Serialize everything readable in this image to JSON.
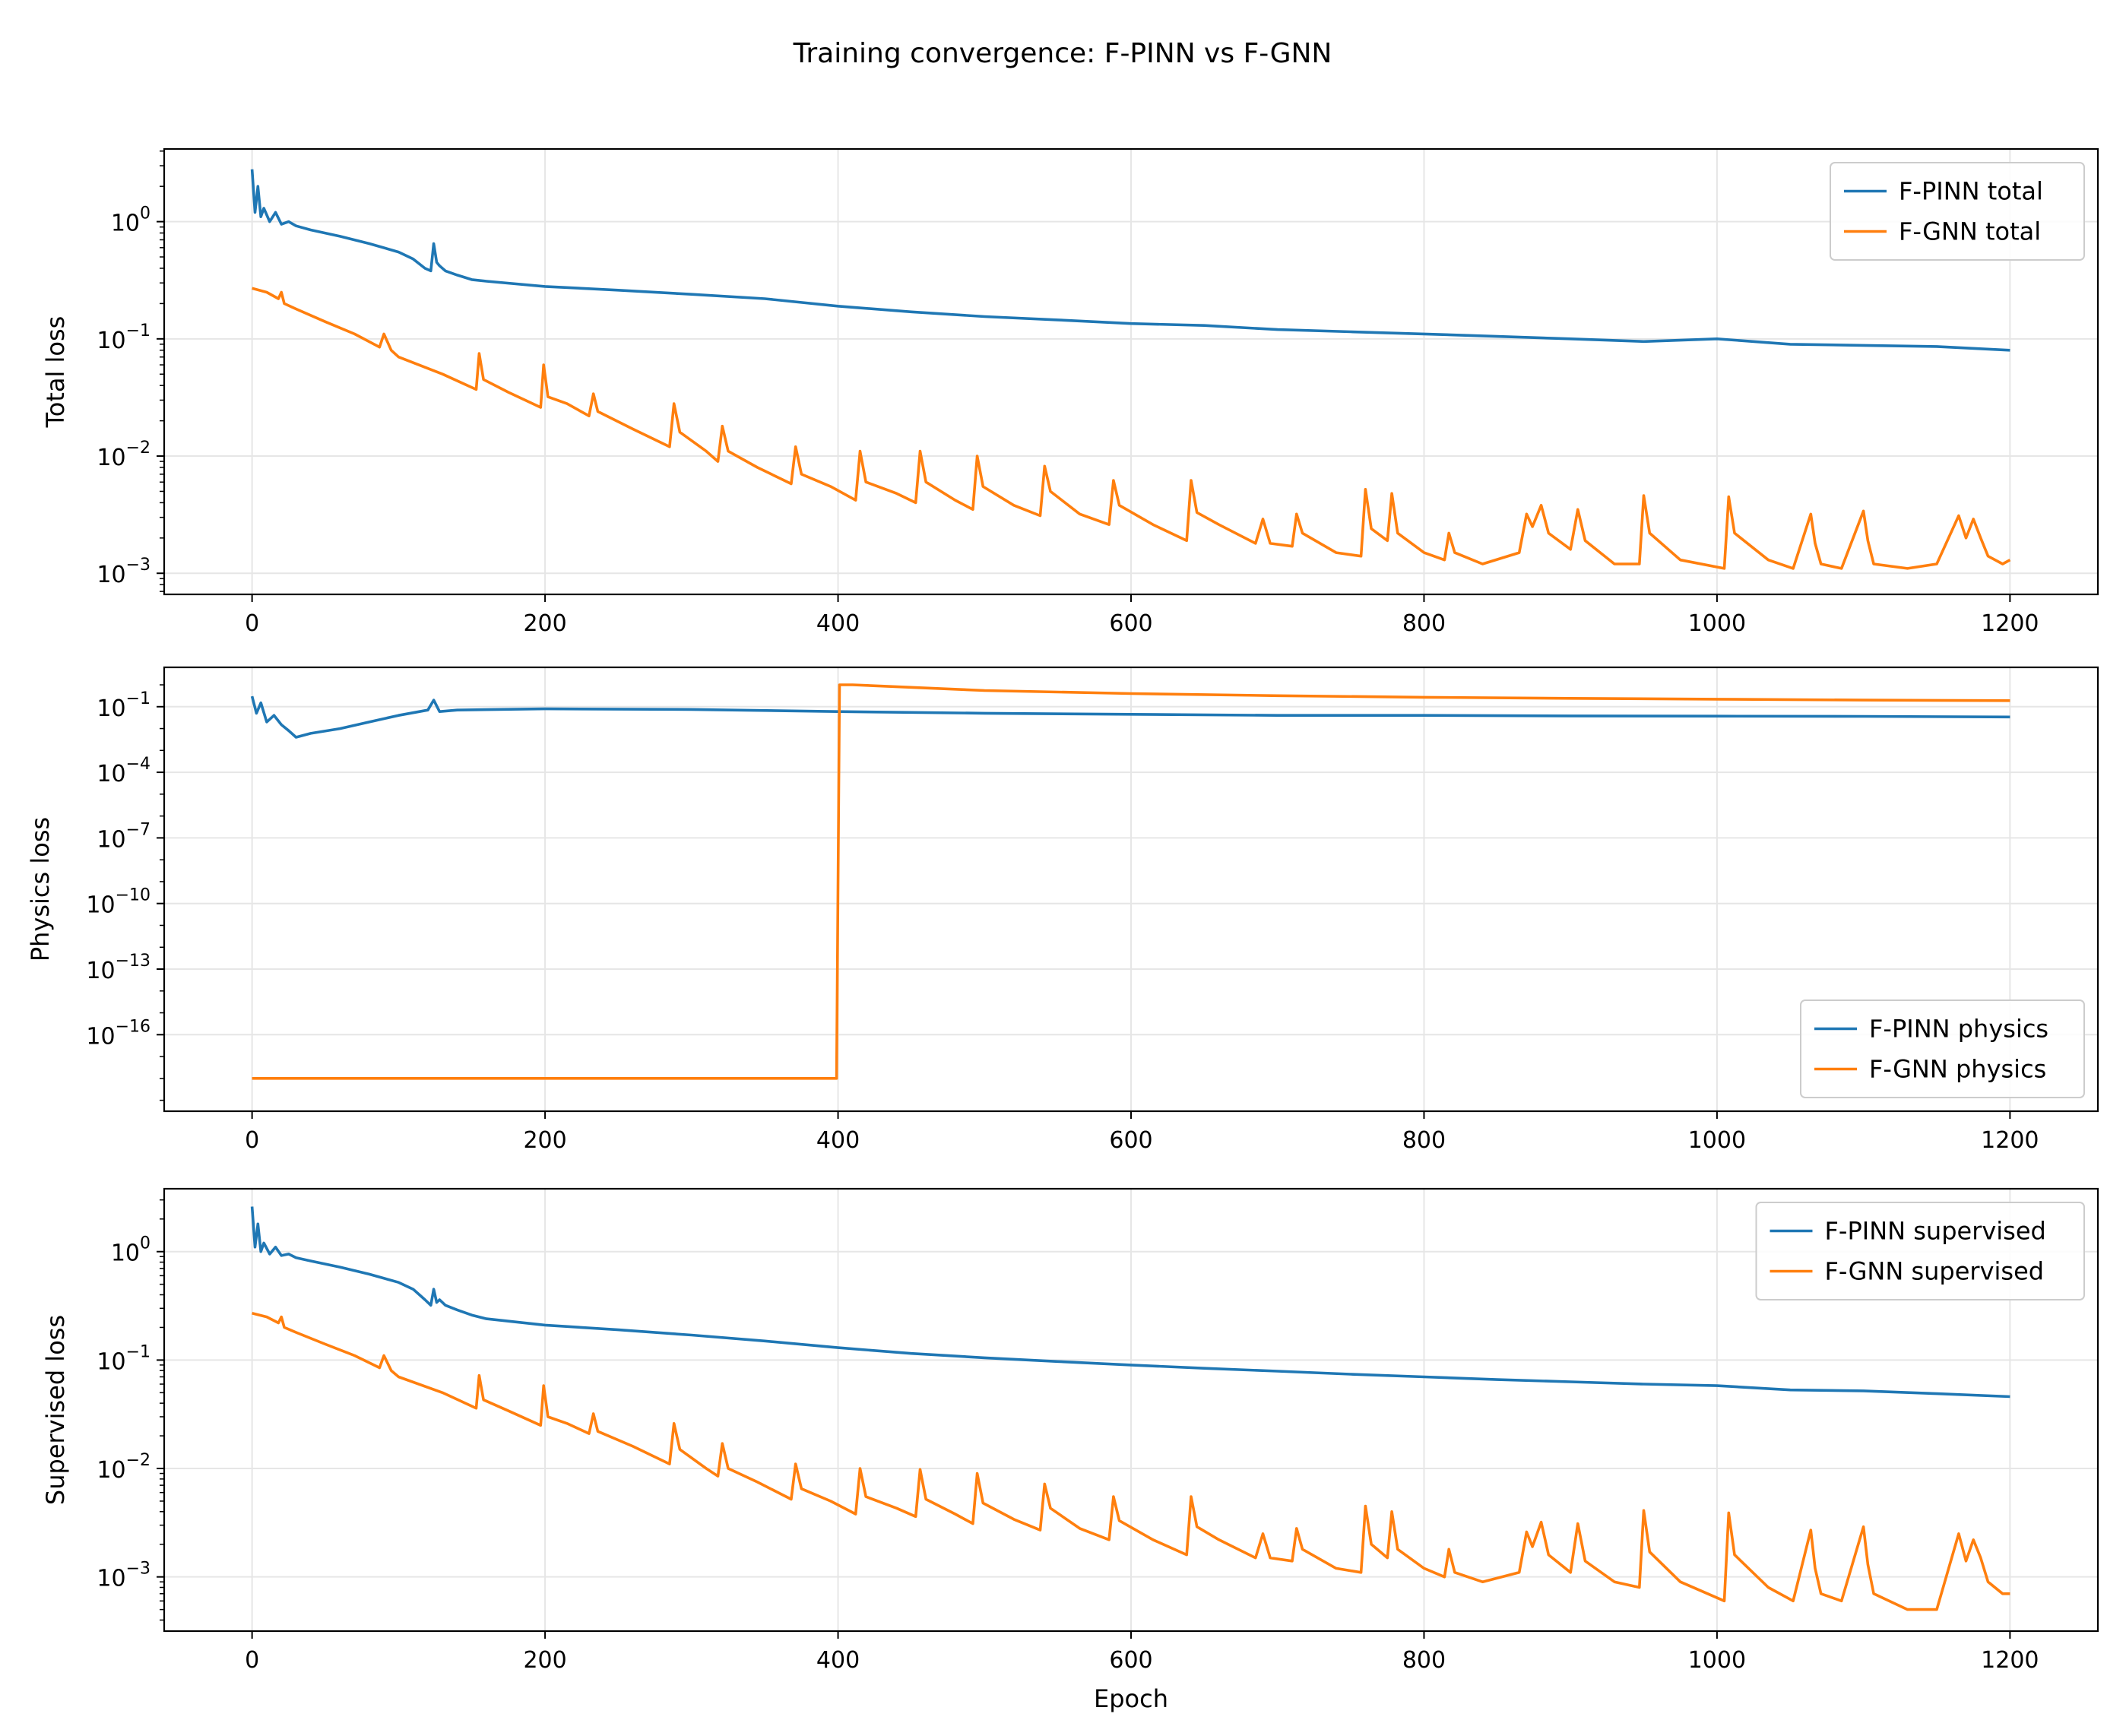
{
  "figure": {
    "title": "Training convergence: F-PINN vs F-GNN"
  },
  "colors": {
    "pinn": "#1f77b4",
    "gnn": "#ff7f0e",
    "grid": "#e6e6e6",
    "axis": "#000000"
  },
  "chart_data": [
    {
      "type": "line",
      "title": "",
      "xlabel": "",
      "ylabel": "Total loss",
      "yscale": "log",
      "xlim": [
        -60,
        1260
      ],
      "xticks": [
        0,
        200,
        400,
        600,
        800,
        1000,
        1200
      ],
      "ylim_log10": [
        -3.18,
        0.62
      ],
      "ytick_exponents": [
        0,
        -1,
        -2,
        -3
      ],
      "legend_loc": "upper right",
      "series": [
        {
          "name": "F-PINN total",
          "color": "#1f77b4",
          "x": [
            0,
            2,
            4,
            6,
            8,
            12,
            16,
            20,
            25,
            30,
            40,
            60,
            80,
            100,
            110,
            118,
            122,
            124,
            126,
            128,
            132,
            140,
            150,
            160,
            200,
            250,
            300,
            350,
            400,
            450,
            500,
            550,
            600,
            650,
            700,
            750,
            800,
            850,
            900,
            950,
            1000,
            1050,
            1100,
            1150,
            1200
          ],
          "y": [
            2.8,
            1.2,
            2.0,
            1.1,
            1.3,
            1.0,
            1.2,
            0.95,
            1.0,
            0.92,
            0.85,
            0.75,
            0.65,
            0.55,
            0.48,
            0.4,
            0.38,
            0.65,
            0.45,
            0.42,
            0.38,
            0.35,
            0.32,
            0.31,
            0.28,
            0.26,
            0.24,
            0.22,
            0.19,
            0.17,
            0.155,
            0.145,
            0.135,
            0.13,
            0.12,
            0.115,
            0.11,
            0.105,
            0.1,
            0.095,
            0.1,
            0.09,
            0.088,
            0.086,
            0.08
          ]
        },
        {
          "name": "F-GNN total",
          "color": "#ff7f0e",
          "x": [
            0,
            10,
            18,
            20,
            22,
            30,
            50,
            70,
            87,
            90,
            95,
            100,
            130,
            153,
            155,
            158,
            175,
            197,
            199,
            202,
            215,
            230,
            233,
            236,
            260,
            285,
            288,
            292,
            310,
            318,
            321,
            325,
            345,
            368,
            371,
            375,
            395,
            412,
            415,
            419,
            440,
            453,
            456,
            460,
            480,
            492,
            495,
            499,
            520,
            538,
            541,
            545,
            565,
            585,
            588,
            592,
            615,
            638,
            641,
            645,
            660,
            685,
            690,
            695,
            710,
            713,
            717,
            740,
            757,
            760,
            764,
            775,
            778,
            782,
            800,
            814,
            817,
            821,
            840,
            865,
            870,
            874,
            880,
            885,
            900,
            905,
            910,
            930,
            947,
            950,
            954,
            975,
            1005,
            1008,
            1012,
            1035,
            1052,
            1064,
            1067,
            1071,
            1085,
            1100,
            1103,
            1107,
            1130,
            1150,
            1165,
            1170,
            1175,
            1180,
            1185,
            1195,
            1200
          ],
          "y": [
            0.27,
            0.25,
            0.22,
            0.25,
            0.2,
            0.18,
            0.14,
            0.11,
            0.085,
            0.11,
            0.08,
            0.07,
            0.05,
            0.037,
            0.075,
            0.045,
            0.035,
            0.026,
            0.06,
            0.032,
            0.028,
            0.022,
            0.034,
            0.024,
            0.017,
            0.012,
            0.028,
            0.016,
            0.011,
            0.009,
            0.018,
            0.011,
            0.008,
            0.0058,
            0.012,
            0.007,
            0.0055,
            0.0042,
            0.011,
            0.006,
            0.0048,
            0.004,
            0.011,
            0.006,
            0.0042,
            0.0035,
            0.01,
            0.0055,
            0.0038,
            0.0031,
            0.0082,
            0.005,
            0.0032,
            0.0026,
            0.0062,
            0.0038,
            0.0026,
            0.0019,
            0.0062,
            0.0033,
            0.0026,
            0.0018,
            0.0029,
            0.0018,
            0.0017,
            0.0032,
            0.0022,
            0.0015,
            0.0014,
            0.0052,
            0.0024,
            0.0019,
            0.0048,
            0.0022,
            0.0015,
            0.0013,
            0.0022,
            0.0015,
            0.0012,
            0.0015,
            0.0032,
            0.0025,
            0.0038,
            0.0022,
            0.0016,
            0.0035,
            0.0019,
            0.0012,
            0.0012,
            0.0046,
            0.0022,
            0.0013,
            0.0011,
            0.0045,
            0.0022,
            0.0013,
            0.0011,
            0.0032,
            0.0018,
            0.0012,
            0.0011,
            0.0034,
            0.0019,
            0.0012,
            0.0011,
            0.0012,
            0.0031,
            0.002,
            0.0029,
            0.002,
            0.0014,
            0.0012,
            0.0013
          ]
        }
      ]
    },
    {
      "type": "line",
      "title": "",
      "xlabel": "",
      "ylabel": "Physics loss",
      "yscale": "log",
      "xlim": [
        -60,
        1260
      ],
      "xticks": [
        0,
        200,
        400,
        600,
        800,
        1000,
        1200
      ],
      "ylim_log10": [
        -19.5,
        0.8
      ],
      "ytick_exponents": [
        -1,
        -4,
        -7,
        -10,
        -13,
        -16
      ],
      "legend_loc": "lower right",
      "series": [
        {
          "name": "F-PINN physics",
          "color": "#1f77b4",
          "x": [
            0,
            3,
            6,
            10,
            15,
            20,
            25,
            30,
            40,
            60,
            80,
            100,
            120,
            124,
            128,
            140,
            200,
            300,
            400,
            500,
            600,
            700,
            800,
            900,
            1000,
            1100,
            1200
          ],
          "y": [
            0.3,
            0.05,
            0.15,
            0.02,
            0.04,
            0.015,
            0.008,
            0.004,
            0.006,
            0.01,
            0.02,
            0.04,
            0.07,
            0.2,
            0.06,
            0.07,
            0.08,
            0.075,
            0.06,
            0.05,
            0.045,
            0.04,
            0.04,
            0.038,
            0.037,
            0.036,
            0.034
          ]
        },
        {
          "name": "F-GNN physics",
          "color": "#ff7f0e",
          "x": [
            0,
            399,
            401,
            410,
            500,
            600,
            700,
            800,
            900,
            1000,
            1100,
            1200
          ],
          "y": [
            1e-18,
            1e-18,
            1.0,
            1.0,
            0.55,
            0.4,
            0.32,
            0.27,
            0.24,
            0.22,
            0.2,
            0.19
          ]
        }
      ]
    },
    {
      "type": "line",
      "title": "",
      "xlabel": "Epoch",
      "ylabel": "Supervised loss",
      "yscale": "log",
      "xlim": [
        -60,
        1260
      ],
      "xticks": [
        0,
        200,
        400,
        600,
        800,
        1000,
        1200
      ],
      "ylim_log10": [
        -3.5,
        0.58
      ],
      "ytick_exponents": [
        0,
        -1,
        -2,
        -3
      ],
      "legend_loc": "upper right",
      "series": [
        {
          "name": "F-PINN supervised",
          "color": "#1f77b4",
          "x": [
            0,
            2,
            4,
            6,
            8,
            12,
            16,
            20,
            25,
            30,
            40,
            60,
            80,
            100,
            110,
            118,
            122,
            124,
            126,
            128,
            132,
            140,
            150,
            160,
            200,
            250,
            300,
            350,
            400,
            450,
            500,
            550,
            600,
            650,
            700,
            750,
            800,
            850,
            900,
            950,
            1000,
            1050,
            1100,
            1150,
            1200
          ],
          "y": [
            2.6,
            1.1,
            1.8,
            1.0,
            1.2,
            0.95,
            1.1,
            0.92,
            0.95,
            0.88,
            0.82,
            0.72,
            0.62,
            0.52,
            0.45,
            0.36,
            0.32,
            0.45,
            0.34,
            0.36,
            0.32,
            0.29,
            0.26,
            0.24,
            0.21,
            0.19,
            0.17,
            0.15,
            0.13,
            0.115,
            0.105,
            0.097,
            0.09,
            0.084,
            0.079,
            0.074,
            0.07,
            0.066,
            0.063,
            0.06,
            0.058,
            0.053,
            0.052,
            0.049,
            0.046
          ]
        },
        {
          "name": "F-GNN supervised",
          "color": "#ff7f0e",
          "x": [
            0,
            10,
            18,
            20,
            22,
            30,
            50,
            70,
            87,
            90,
            95,
            100,
            130,
            153,
            155,
            158,
            175,
            197,
            199,
            202,
            215,
            230,
            233,
            236,
            260,
            285,
            288,
            292,
            310,
            318,
            321,
            325,
            345,
            368,
            371,
            375,
            395,
            412,
            415,
            419,
            440,
            453,
            456,
            460,
            480,
            492,
            495,
            499,
            520,
            538,
            541,
            545,
            565,
            585,
            588,
            592,
            615,
            638,
            641,
            645,
            660,
            685,
            690,
            695,
            710,
            713,
            717,
            740,
            757,
            760,
            764,
            775,
            778,
            782,
            800,
            814,
            817,
            821,
            840,
            865,
            870,
            874,
            880,
            885,
            900,
            905,
            910,
            930,
            947,
            950,
            954,
            975,
            1005,
            1008,
            1012,
            1035,
            1052,
            1064,
            1067,
            1071,
            1085,
            1100,
            1103,
            1107,
            1130,
            1150,
            1165,
            1170,
            1175,
            1180,
            1185,
            1195,
            1200
          ],
          "y": [
            0.27,
            0.25,
            0.22,
            0.25,
            0.2,
            0.18,
            0.14,
            0.11,
            0.085,
            0.11,
            0.08,
            0.07,
            0.05,
            0.036,
            0.072,
            0.043,
            0.034,
            0.025,
            0.058,
            0.03,
            0.026,
            0.021,
            0.032,
            0.022,
            0.016,
            0.011,
            0.026,
            0.015,
            0.01,
            0.0085,
            0.017,
            0.01,
            0.0075,
            0.0052,
            0.011,
            0.0065,
            0.005,
            0.0038,
            0.01,
            0.0055,
            0.0043,
            0.0036,
            0.0098,
            0.0052,
            0.0038,
            0.0031,
            0.009,
            0.0048,
            0.0034,
            0.0027,
            0.0072,
            0.0043,
            0.0028,
            0.0022,
            0.0055,
            0.0033,
            0.0022,
            0.0016,
            0.0055,
            0.0029,
            0.0022,
            0.0015,
            0.0025,
            0.0015,
            0.0014,
            0.0028,
            0.0018,
            0.0012,
            0.0011,
            0.0045,
            0.002,
            0.0015,
            0.004,
            0.0018,
            0.0012,
            0.001,
            0.0018,
            0.0011,
            0.0009,
            0.0011,
            0.0026,
            0.0019,
            0.0032,
            0.0016,
            0.0011,
            0.0031,
            0.0014,
            0.0009,
            0.0008,
            0.0041,
            0.0017,
            0.0009,
            0.0006,
            0.0039,
            0.0016,
            0.0008,
            0.0006,
            0.0027,
            0.0012,
            0.0007,
            0.0006,
            0.0029,
            0.0013,
            0.0007,
            0.0005,
            0.0005,
            0.0025,
            0.0014,
            0.0022,
            0.0015,
            0.0009,
            0.0007,
            0.0007
          ]
        }
      ]
    }
  ]
}
